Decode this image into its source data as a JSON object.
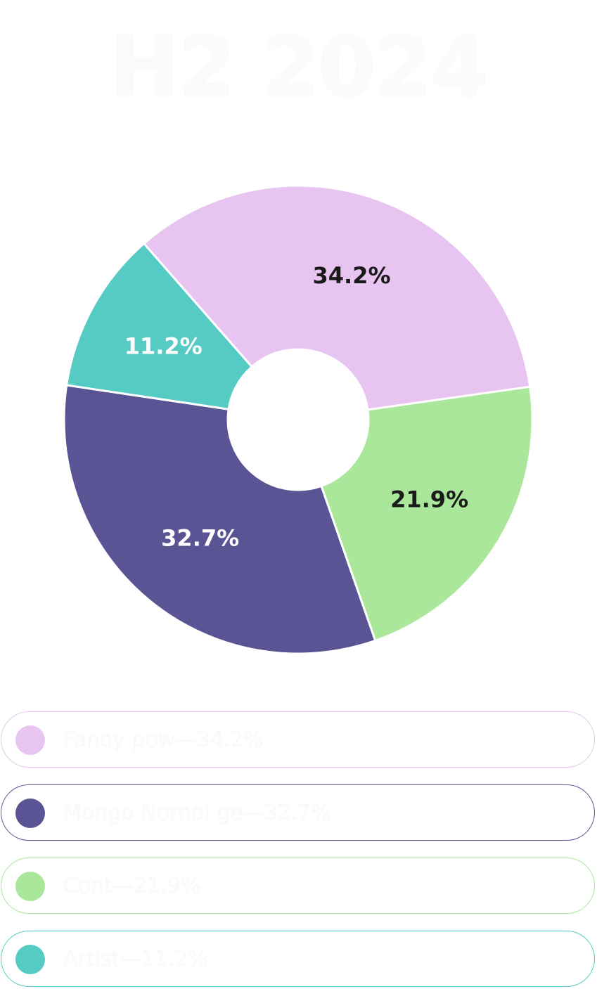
{
  "title": "H2 2024",
  "legend": {
    "items": [
      {
        "label": "Fanoy pow—34.2%",
        "color": "#e8c4f0"
      },
      {
        "label": "Mongo Nornol ge—32.7%",
        "color": "#5a5494"
      },
      {
        "label": "Cont—21.9%",
        "color": "#abe79b"
      },
      {
        "label": "Artist—11.2%",
        "color": "#56cbc3"
      }
    ]
  },
  "chart_data": {
    "type": "pie",
    "style": "donut",
    "title": "H2 2024",
    "slices": [
      {
        "label": "34.2%",
        "value": 34.2,
        "color": "#e8c4f0",
        "label_color": "#1a1a1a"
      },
      {
        "label": "21.9%",
        "value": 21.9,
        "color": "#abe79b",
        "label_color": "#1a1a1a"
      },
      {
        "label": "32.7%",
        "value": 32.7,
        "color": "#5a5494",
        "label_color": "#ffffff"
      },
      {
        "label": "11.2%",
        "value": 11.2,
        "color": "#56cbc3",
        "label_color": "#ffffff"
      }
    ],
    "legend_position": "bottom"
  }
}
